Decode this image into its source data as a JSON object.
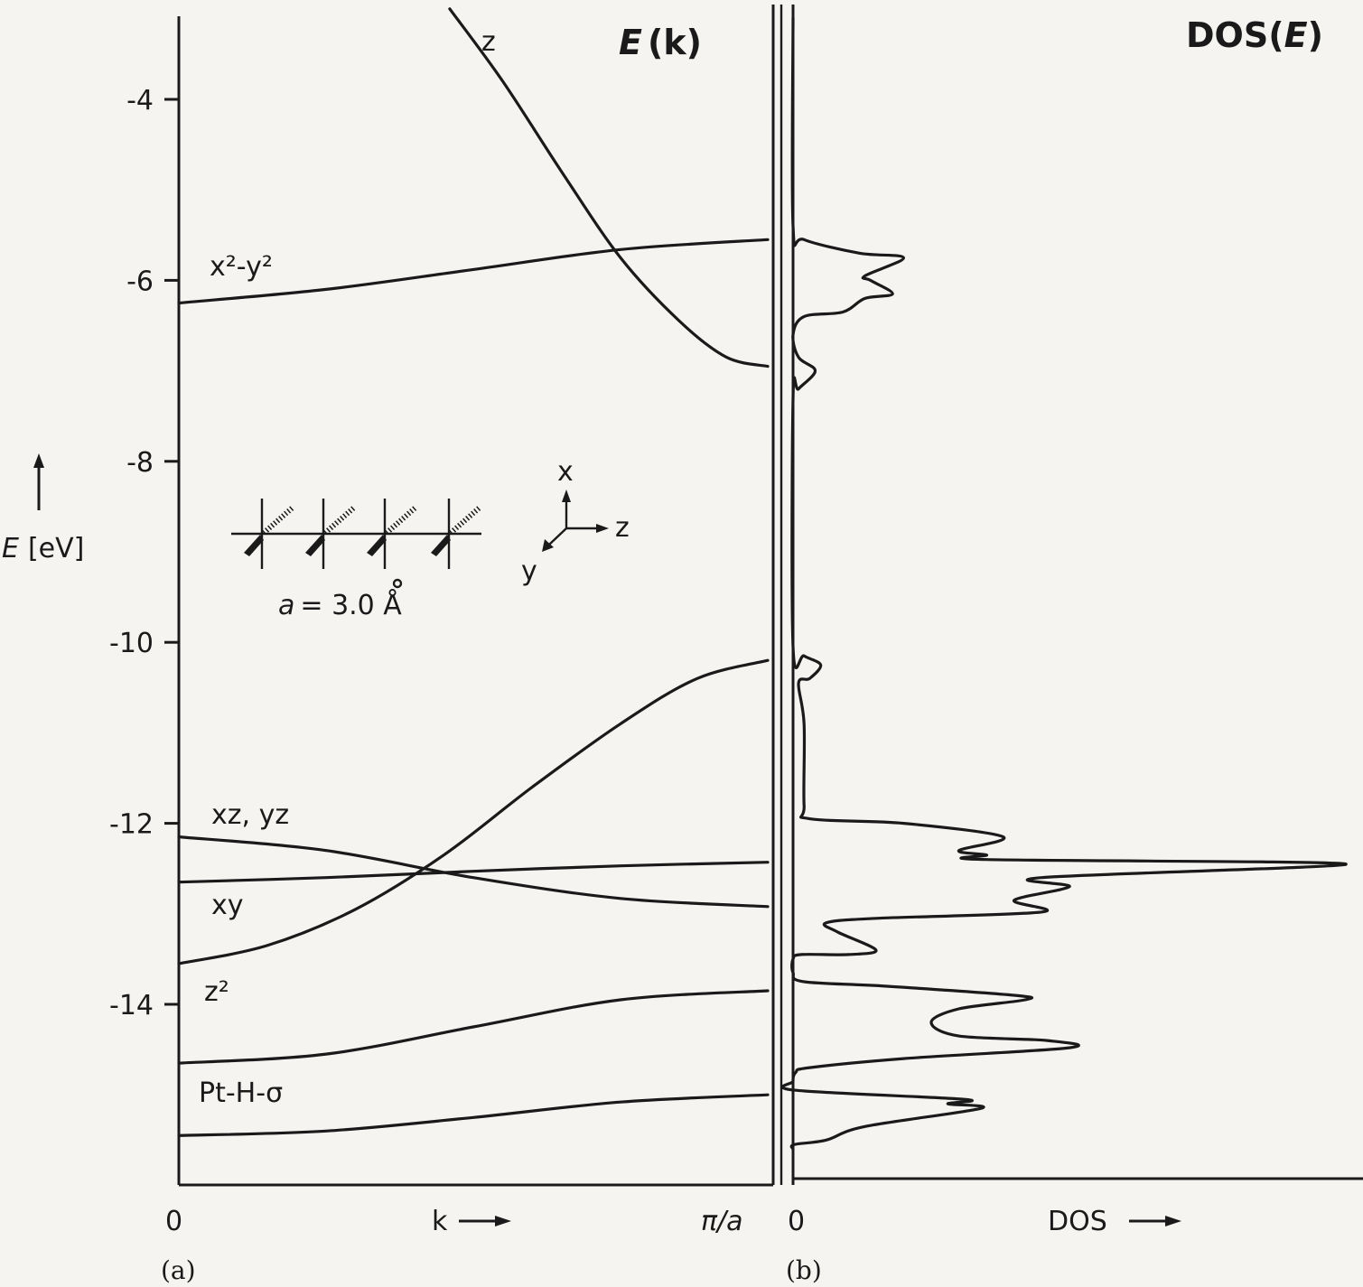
{
  "chart_data": [
    {
      "panel": "(a)",
      "type": "line",
      "title": "E(k)",
      "title_italic_part": "E",
      "title_rest": "(k)",
      "ylabel_symbol": "E",
      "ylabel_unit": "[eV]",
      "xlabel": "k",
      "x_tick_labels": [
        "0",
        "π/a"
      ],
      "ylim": [
        -16.0,
        -3.1
      ],
      "y_ticks": [
        -4,
        -6,
        -8,
        -10,
        -12,
        -14
      ],
      "y_tick_labels": [
        "-4",
        "-6",
        "-8",
        "-10",
        "-12",
        "-14"
      ],
      "x_range": [
        0,
        1
      ],
      "x_unit_note": "k in units of π/a",
      "series": [
        {
          "name": "z",
          "x": [
            0.46,
            0.55,
            0.65,
            0.75,
            0.85,
            0.93,
            1.0
          ],
          "y": [
            -3.0,
            -3.8,
            -4.8,
            -5.75,
            -6.45,
            -6.85,
            -6.95
          ]
        },
        {
          "name": "x²-y²",
          "x": [
            0.0,
            0.25,
            0.5,
            0.75,
            1.0
          ],
          "y": [
            -6.25,
            -6.1,
            -5.88,
            -5.66,
            -5.55
          ]
        },
        {
          "name": "xz, yz",
          "x": [
            0.0,
            0.25,
            0.5,
            0.75,
            1.0
          ],
          "y": [
            -12.15,
            -12.3,
            -12.6,
            -12.83,
            -12.92
          ]
        },
        {
          "name": "xy",
          "x": [
            0.0,
            0.25,
            0.5,
            0.75,
            1.0
          ],
          "y": [
            -12.65,
            -12.6,
            -12.53,
            -12.47,
            -12.43
          ]
        },
        {
          "name": "z²",
          "x": [
            0.0,
            0.15,
            0.3,
            0.45,
            0.6,
            0.75,
            0.88,
            1.0
          ],
          "y": [
            -13.55,
            -13.35,
            -12.95,
            -12.35,
            -11.6,
            -10.9,
            -10.4,
            -10.2
          ]
        },
        {
          "name": "Pt-H-σ",
          "x": [
            0.0,
            0.25,
            0.5,
            0.75,
            1.0
          ],
          "y": [
            -14.65,
            -14.55,
            -14.25,
            -13.95,
            -13.85
          ]
        },
        {
          "name": "",
          "x": [
            0.0,
            0.25,
            0.5,
            0.75,
            1.0
          ],
          "y": [
            -15.45,
            -15.4,
            -15.25,
            -15.08,
            -15.0
          ]
        }
      ],
      "annotations": [
        {
          "text": "a = 3.0 Å",
          "italic": "a",
          "rest": "= 3.0 Å"
        },
        {
          "axes_labels": [
            "x",
            "y",
            "z"
          ]
        }
      ]
    },
    {
      "panel": "(b)",
      "type": "line",
      "title": "DOS(E)",
      "title_prefix": "DOS(",
      "title_italic_part": "E",
      "title_suffix": ")",
      "xlabel": "DOS",
      "x_tick_labels": [
        "0"
      ],
      "ylim": [
        -16.0,
        -3.1
      ],
      "x_range": [
        0,
        1
      ],
      "series": [
        {
          "name": "",
          "points": [
            [
              0.0,
              -15.6
            ],
            [
              0.002,
              -15.55
            ],
            [
              0.06,
              -15.5
            ],
            [
              0.13,
              -15.35
            ],
            [
              0.34,
              -15.15
            ],
            [
              0.28,
              -15.1
            ],
            [
              0.31,
              -15.05
            ],
            [
              0.005,
              -14.95
            ],
            [
              0.0,
              -14.85
            ],
            [
              0.005,
              -14.75
            ],
            [
              0.03,
              -14.7
            ],
            [
              0.2,
              -14.6
            ],
            [
              0.5,
              -14.48
            ],
            [
              0.46,
              -14.4
            ],
            [
              0.3,
              -14.35
            ],
            [
              0.25,
              -14.2
            ],
            [
              0.3,
              -14.05
            ],
            [
              0.42,
              -13.95
            ],
            [
              0.4,
              -13.9
            ],
            [
              0.17,
              -13.8
            ],
            [
              0.02,
              -13.75
            ],
            [
              0.0,
              -13.65
            ],
            [
              0.0,
              -13.5
            ],
            [
              0.015,
              -13.45
            ],
            [
              0.1,
              -13.45
            ],
            [
              0.15,
              -13.4
            ],
            [
              0.08,
              -13.2
            ],
            [
              0.06,
              -13.1
            ],
            [
              0.15,
              -13.05
            ],
            [
              0.45,
              -12.98
            ],
            [
              0.4,
              -12.85
            ],
            [
              0.5,
              -12.7
            ],
            [
              0.45,
              -12.6
            ],
            [
              1.0,
              -12.45
            ],
            [
              0.35,
              -12.4
            ],
            [
              0.35,
              -12.35
            ],
            [
              0.3,
              -12.3
            ],
            [
              0.38,
              -12.15
            ],
            [
              0.2,
              -12.0
            ],
            [
              0.03,
              -11.95
            ],
            [
              0.02,
              -11.8
            ],
            [
              0.02,
              -10.9
            ],
            [
              0.01,
              -10.45
            ],
            [
              0.03,
              -10.4
            ],
            [
              0.05,
              -10.25
            ],
            [
              0.02,
              -10.15
            ],
            [
              0.0,
              -10.05
            ],
            [
              0.0,
              -7.3
            ],
            [
              0.01,
              -7.2
            ],
            [
              0.04,
              -7.0
            ],
            [
              0.01,
              -6.85
            ],
            [
              0.0,
              -6.6
            ],
            [
              0.02,
              -6.4
            ],
            [
              0.09,
              -6.35
            ],
            [
              0.13,
              -6.2
            ],
            [
              0.18,
              -6.15
            ],
            [
              0.14,
              -6.0
            ],
            [
              0.13,
              -5.95
            ],
            [
              0.2,
              -5.75
            ],
            [
              0.12,
              -5.7
            ],
            [
              0.02,
              -5.55
            ],
            [
              0.0,
              -5.4
            ],
            [
              0.0,
              -3.1
            ]
          ]
        }
      ]
    }
  ],
  "panel_labels": [
    "(a)",
    "(b)"
  ]
}
